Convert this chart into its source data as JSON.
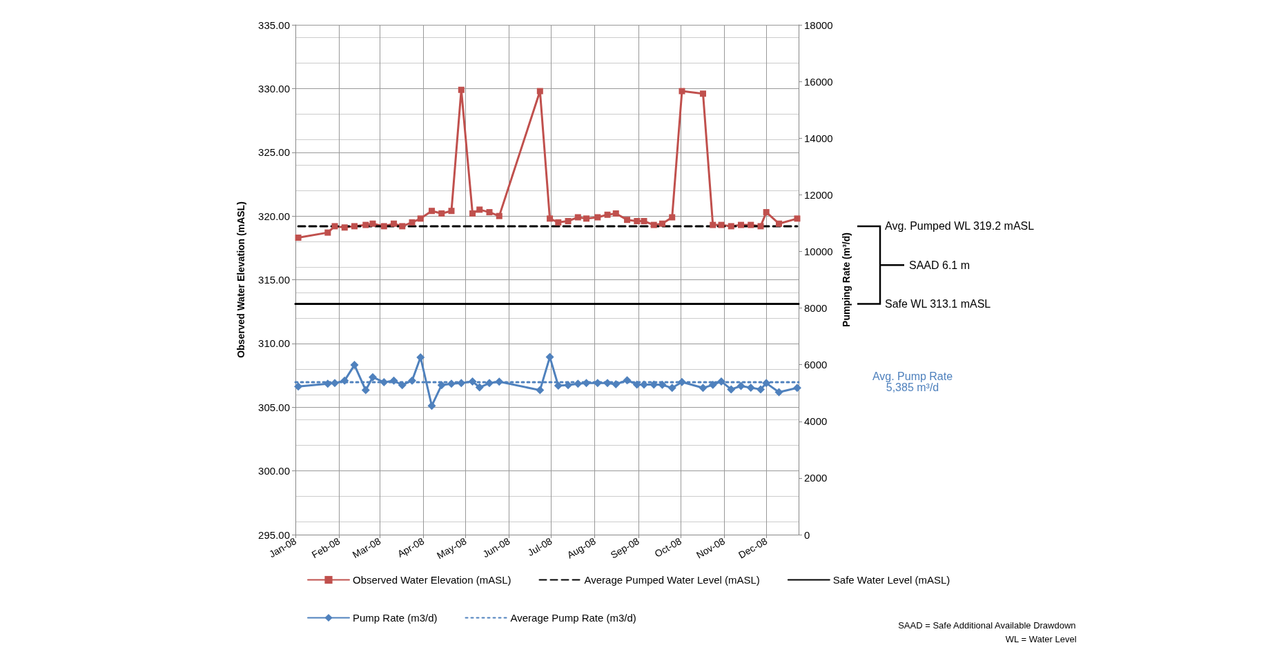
{
  "chart_data": {
    "type": "line",
    "ylabel": "Observed Water Elevation (mASL)",
    "y2label": "Pumping Rate (m³/d)",
    "xlim": [
      "2008-01-01",
      "2008-12-24"
    ],
    "xticks": [
      {
        "value": "2008-01-01",
        "label": "Jan-08"
      },
      {
        "value": "2008-02-01",
        "label": "Feb-08"
      },
      {
        "value": "2008-03-01",
        "label": "Mar-08"
      },
      {
        "value": "2008-04-01",
        "label": "Apr-08"
      },
      {
        "value": "2008-05-01",
        "label": "May-08"
      },
      {
        "value": "2008-06-01",
        "label": "Jun-08"
      },
      {
        "value": "2008-07-01",
        "label": "Jul-08"
      },
      {
        "value": "2008-08-01",
        "label": "Aug-08"
      },
      {
        "value": "2008-09-01",
        "label": "Sep-08"
      },
      {
        "value": "2008-10-01",
        "label": "Oct-08"
      },
      {
        "value": "2008-11-01",
        "label": "Nov-08"
      },
      {
        "value": "2008-12-01",
        "label": "Dec-08"
      }
    ],
    "ylim": [
      295,
      335
    ],
    "yticks": [
      {
        "value": 295,
        "label": "295.00"
      },
      {
        "value": 300,
        "label": "300.00"
      },
      {
        "value": 305,
        "label": "305.00"
      },
      {
        "value": 310,
        "label": "310.00"
      },
      {
        "value": 315,
        "label": "315.00"
      },
      {
        "value": 320,
        "label": "320.00"
      },
      {
        "value": 325,
        "label": "325.00"
      },
      {
        "value": 330,
        "label": "330.00"
      },
      {
        "value": 335,
        "label": "335.00"
      }
    ],
    "y2lim": [
      0,
      18000
    ],
    "y2ticks": [
      0,
      2000,
      4000,
      6000,
      8000,
      10000,
      12000,
      14000,
      16000,
      18000
    ],
    "grid": true,
    "legend": "bottom",
    "x": [
      "2008-01-03",
      "2008-01-24",
      "2008-01-29",
      "2008-02-05",
      "2008-02-12",
      "2008-02-20",
      "2008-02-25",
      "2008-03-04",
      "2008-03-11",
      "2008-03-17",
      "2008-03-24",
      "2008-03-30",
      "2008-04-07",
      "2008-04-14",
      "2008-04-21",
      "2008-04-28",
      "2008-05-06",
      "2008-05-11",
      "2008-05-18",
      "2008-05-25",
      "2008-06-23",
      "2008-06-30",
      "2008-07-06",
      "2008-07-13",
      "2008-07-20",
      "2008-07-26",
      "2008-08-03",
      "2008-08-10",
      "2008-08-16",
      "2008-08-24",
      "2008-08-31",
      "2008-09-05",
      "2008-09-12",
      "2008-09-18",
      "2008-09-25",
      "2008-10-02",
      "2008-10-17",
      "2008-10-24",
      "2008-10-30",
      "2008-11-06",
      "2008-11-13",
      "2008-11-20",
      "2008-11-27",
      "2008-12-01",
      "2008-12-10",
      "2008-12-23"
    ],
    "series": [
      {
        "name": "Observed Water Elevation (mASL)",
        "color": "#c0504d",
        "marker": "square",
        "line_style": "solid",
        "values": [
          318.3,
          318.7,
          319.2,
          319.1,
          319.2,
          319.3,
          319.4,
          319.2,
          319.4,
          319.2,
          319.5,
          319.8,
          320.4,
          320.2,
          320.4,
          329.9,
          320.2,
          320.5,
          320.3,
          320.0,
          329.8,
          319.8,
          319.5,
          319.6,
          319.9,
          319.8,
          319.9,
          320.1,
          320.2,
          319.7,
          319.6,
          319.6,
          319.3,
          319.4,
          319.9,
          329.8,
          329.6,
          319.3,
          319.3,
          319.2,
          319.3,
          319.3,
          319.2,
          320.3,
          319.4,
          319.8
        ]
      },
      {
        "name": "Average Pumped Water Level (mASL)",
        "color": "#000000",
        "marker": "none",
        "line_style": "dashed",
        "x": [
          "2008-01-03",
          "2008-12-23"
        ],
        "values": [
          319.2,
          319.2
        ]
      },
      {
        "name": "Safe Water Level (mASL)",
        "color": "#000000",
        "marker": "none",
        "line_style": "solid",
        "x": [
          "2008-01-01",
          "2008-12-24"
        ],
        "values": [
          313.1,
          313.1
        ]
      },
      {
        "name": "Pump Rate (m3/d)",
        "color": "#4f81bd",
        "marker": "diamond",
        "line_style": "solid",
        "axis": "y2",
        "values": [
          5230,
          5330,
          5350,
          5440,
          5990,
          5100,
          5560,
          5380,
          5440,
          5280,
          5440,
          6260,
          4550,
          5280,
          5330,
          5350,
          5410,
          5200,
          5350,
          5400,
          5100,
          6270,
          5260,
          5280,
          5330,
          5350,
          5350,
          5350,
          5310,
          5450,
          5300,
          5300,
          5300,
          5290,
          5180,
          5390,
          5180,
          5290,
          5410,
          5130,
          5250,
          5190,
          5130,
          5350,
          5030,
          5180
        ]
      },
      {
        "name": "Average Pump Rate (m3/d)",
        "color": "#4f81bd",
        "marker": "none",
        "line_style": "dotted",
        "axis": "y2",
        "x": [
          "2008-01-01",
          "2008-12-24"
        ],
        "values": [
          5385,
          5385
        ]
      }
    ],
    "annotations": [
      "Avg. Pumped WL 319.2 mASL",
      "SAAD 6.1 m",
      "Safe WL 313.1 mASL",
      "Avg. Pump Rate\n5,385 m³/d",
      "SAAD = Safe Additional Available Drawdown",
      "WL = Water Level"
    ]
  }
}
